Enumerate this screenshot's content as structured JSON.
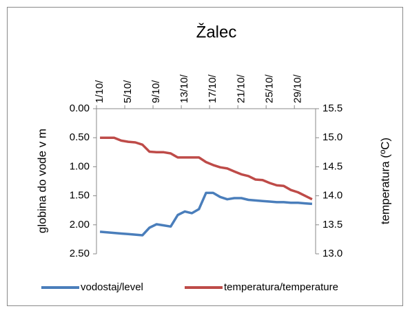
{
  "chart_data": {
    "type": "line",
    "title": "Žalec",
    "categories": [
      "1/10/",
      null,
      null,
      null,
      "5/10/",
      null,
      null,
      null,
      "9/10/",
      null,
      null,
      null,
      "13/10/",
      null,
      null,
      null,
      "17/10/",
      null,
      null,
      null,
      "21/10/",
      null,
      null,
      null,
      "25/10/",
      null,
      null,
      null,
      "29/10/",
      null,
      null
    ],
    "series": [
      {
        "name": "vodostaj/level",
        "color": "#4a7ebb",
        "values": [
          2.12,
          2.13,
          2.14,
          2.15,
          2.16,
          2.17,
          2.18,
          2.05,
          1.99,
          2.01,
          2.03,
          1.83,
          1.77,
          1.8,
          1.73,
          1.45,
          1.45,
          1.52,
          1.56,
          1.54,
          1.54,
          1.57,
          1.58,
          1.59,
          1.6,
          1.61,
          1.61,
          1.62,
          1.62,
          1.63,
          1.64
        ]
      },
      {
        "name": "temperatura/temperature",
        "color": "#be4b48",
        "axis": "y2",
        "values": [
          15.0,
          15.0,
          15.0,
          14.95,
          14.93,
          14.92,
          14.88,
          14.76,
          14.75,
          14.75,
          14.73,
          14.66,
          14.66,
          14.66,
          14.66,
          14.58,
          14.53,
          14.49,
          14.47,
          14.42,
          14.37,
          14.34,
          14.28,
          14.27,
          14.22,
          14.18,
          14.17,
          14.1,
          14.06,
          14.0,
          13.94
        ]
      }
    ],
    "ylabel": "globina do vode v m",
    "y2label": "temperatura (ºC)",
    "ylim": [
      2.5,
      0
    ],
    "yticks": [
      {
        "value": 0,
        "label": "0.00"
      },
      {
        "value": 0.5,
        "label": "0.50"
      },
      {
        "value": 1,
        "label": "1.00"
      },
      {
        "value": 1.5,
        "label": "1.50"
      },
      {
        "value": 2,
        "label": "2.00"
      },
      {
        "value": 2.5,
        "label": "2.50"
      }
    ],
    "y2lim": [
      13,
      15.5
    ],
    "y2ticks": [
      15.5,
      {
        "value": 15,
        "label": "15.0"
      },
      14.5,
      {
        "value": 14,
        "label": "14.0"
      },
      13.5,
      {
        "value": 13,
        "label": "13.0"
      }
    ],
    "legend": "bottom"
  }
}
